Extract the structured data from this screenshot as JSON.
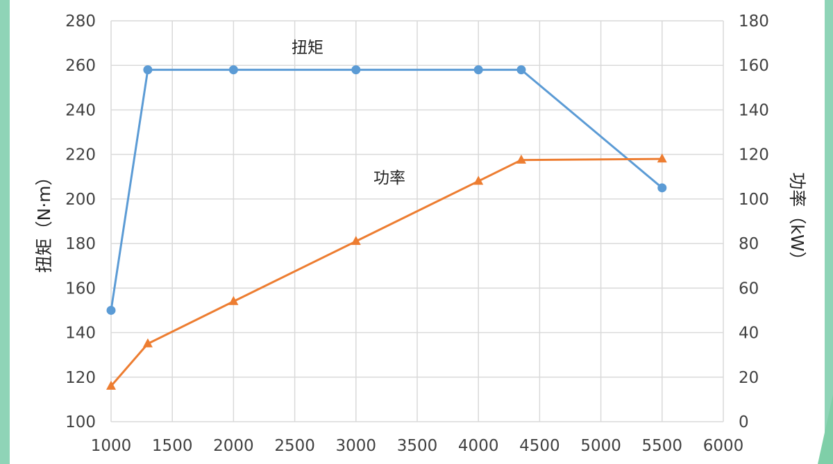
{
  "colors": {
    "background": "#ffffff",
    "side_accent": "#8fd4b7",
    "grid": "#d9d9d9",
    "torque": "#5b9bd5",
    "power": "#ed7d31"
  },
  "chart_data": {
    "type": "line",
    "title": "",
    "xlabel": "",
    "ylabel": "扭矩（N·m）",
    "y2label": "功率（kW）",
    "xlim": [
      1000,
      6000
    ],
    "ylim": [
      100,
      280
    ],
    "y2lim": [
      0,
      180
    ],
    "x_ticks": [
      "1000",
      "1500",
      "2000",
      "2500",
      "3000",
      "3500",
      "4000",
      "4500",
      "5000",
      "5500",
      "6000"
    ],
    "y_ticks": [
      "100",
      "120",
      "140",
      "160",
      "180",
      "200",
      "220",
      "240",
      "260",
      "280"
    ],
    "y2_ticks": [
      "0",
      "20",
      "40",
      "60",
      "80",
      "100",
      "120",
      "140",
      "160",
      "180"
    ],
    "grid": true,
    "series": [
      {
        "name": "扭矩",
        "axis": "left",
        "marker": "circle",
        "color": "#5b9bd5",
        "points": [
          [
            1000,
            150
          ],
          [
            1300,
            258
          ],
          [
            2000,
            258
          ],
          [
            3000,
            258
          ],
          [
            4000,
            258
          ],
          [
            4350,
            258
          ],
          [
            5500,
            205
          ]
        ]
      },
      {
        "name": "功率",
        "axis": "right",
        "marker": "triangle",
        "color": "#ed7d31",
        "points": [
          [
            1000,
            16
          ],
          [
            1300,
            35
          ],
          [
            2000,
            54
          ],
          [
            3000,
            81
          ],
          [
            4000,
            108
          ],
          [
            4350,
            117.5
          ],
          [
            5500,
            118
          ]
        ]
      }
    ],
    "annotations": [
      {
        "text": "扭矩",
        "series": "扭矩"
      },
      {
        "text": "功率",
        "series": "功率"
      }
    ]
  }
}
